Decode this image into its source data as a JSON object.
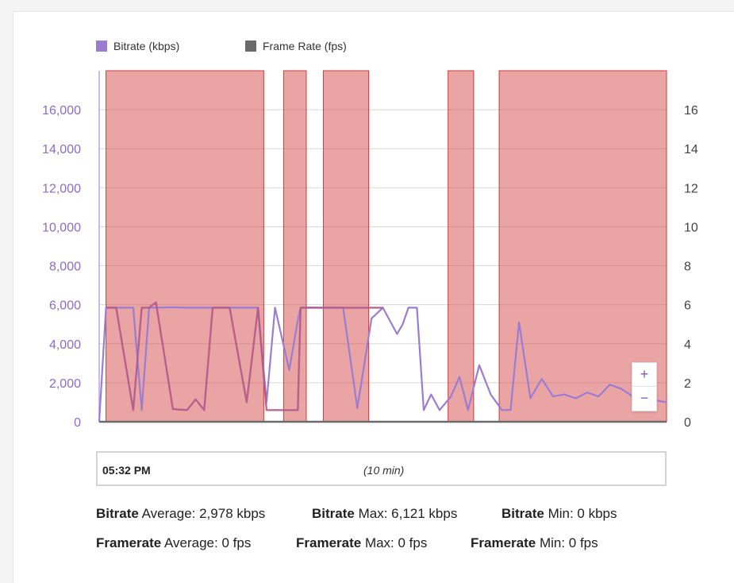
{
  "legend": [
    {
      "label": "Bitrate (kbps)",
      "color": "#9a7dd3"
    },
    {
      "label": "Frame Rate (fps)",
      "color": "#6b6b6b"
    }
  ],
  "chart_data": {
    "type": "line",
    "x_unit": "minutes",
    "x_range": [
      0,
      10
    ],
    "series": [
      {
        "name": "Bitrate (kbps)",
        "axis": "left",
        "color": "#9a7dd3",
        "x": [
          0.0,
          0.12,
          0.3,
          0.6,
          0.75,
          0.88,
          1.0,
          1.3,
          1.55,
          1.7,
          1.85,
          2.0,
          2.3,
          2.6,
          2.8,
          2.95,
          3.1,
          3.35,
          3.5,
          3.55,
          3.65,
          3.75,
          3.82,
          3.9,
          4.0,
          4.3,
          4.55,
          4.8,
          5.0,
          5.25,
          5.35,
          5.45,
          5.6,
          5.72,
          5.85,
          6.0,
          6.2,
          6.35,
          6.5,
          6.7,
          6.9,
          7.1,
          7.25,
          7.4,
          7.6,
          7.8,
          8.0,
          8.2,
          8.4,
          8.6,
          8.8,
          9.0,
          9.2,
          9.4,
          9.6,
          9.8,
          10.0
        ],
        "values": [
          0,
          5850,
          5850,
          5850,
          600,
          5850,
          5850,
          5870,
          5850,
          5850,
          5850,
          5850,
          5850,
          5850,
          5850,
          1000,
          5850,
          2650,
          5200,
          5850,
          5850,
          5860,
          5850,
          5850,
          5850,
          5850,
          700,
          5300,
          5850,
          4500,
          5000,
          5850,
          5850,
          600,
          1400,
          600,
          1300,
          2300,
          600,
          2900,
          1400,
          600,
          600,
          5100,
          1200,
          2200,
          1300,
          1400,
          1200,
          1500,
          1300,
          1900,
          1700,
          1300,
          1500,
          1100,
          1000
        ],
        "overlay_values": {
          "note": "",
          "x": [
            0.12,
            0.3,
            0.6,
            0.75,
            0.88,
            1.0,
            1.3,
            1.55,
            1.7,
            1.85,
            2.0,
            2.3,
            2.6,
            2.8,
            2.95,
            3.1,
            3.35,
            3.5,
            3.55,
            3.65,
            3.75,
            3.82,
            3.9,
            4.0,
            4.3,
            4.55,
            4.8,
            5.0
          ],
          "values": [
            5850,
            5850,
            600,
            5850,
            5850,
            6121,
            650,
            600,
            1150,
            600,
            5850,
            5850,
            1000,
            5850,
            600,
            600,
            600,
            600,
            5850,
            5850,
            5850,
            5850,
            5850,
            5850,
            5850,
            5850,
            5850,
            5850
          ]
        }
      },
      {
        "name": "Frame Rate (fps)",
        "axis": "right",
        "color": "#6b6b6b",
        "x": [
          0,
          10
        ],
        "values": [
          0,
          0
        ]
      }
    ],
    "highlight_bands": [
      {
        "from": 0.12,
        "to": 2.9
      },
      {
        "from": 3.25,
        "to": 3.65
      },
      {
        "from": 3.95,
        "to": 4.75
      },
      {
        "from": 6.15,
        "to": 6.6
      },
      {
        "from": 7.05,
        "to": 10.0
      }
    ],
    "y_left": {
      "ticks": [
        "0",
        "2,000",
        "4,000",
        "6,000",
        "8,000",
        "10,000",
        "12,000",
        "14,000",
        "16,000"
      ],
      "range": [
        0,
        18000
      ],
      "color": "#8a6cc9"
    },
    "y_right": {
      "ticks": [
        "0",
        "2",
        "4",
        "6",
        "8",
        "10",
        "12",
        "14",
        "16"
      ],
      "range": [
        0,
        18
      ],
      "color": "#444"
    },
    "grid": true,
    "legend_position": "top-left"
  },
  "navigator": {
    "start_label": "05:32 PM",
    "range_label": "(10 min)"
  },
  "zoom": {
    "plus": "+",
    "minus": "−"
  },
  "stats": {
    "bitrate_avg": {
      "label": "Bitrate",
      "text": " Average: 2,978 kbps"
    },
    "bitrate_max": {
      "label": "Bitrate",
      "text": " Max: 6,121 kbps"
    },
    "bitrate_min": {
      "label": "Bitrate",
      "text": " Min: 0 kbps"
    },
    "framerate_avg": {
      "label": "Framerate",
      "text": " Average: 0 fps"
    },
    "framerate_max": {
      "label": "Framerate",
      "text": " Max: 0 fps"
    },
    "framerate_min": {
      "label": "Framerate",
      "text": " Min: 0 fps"
    }
  }
}
